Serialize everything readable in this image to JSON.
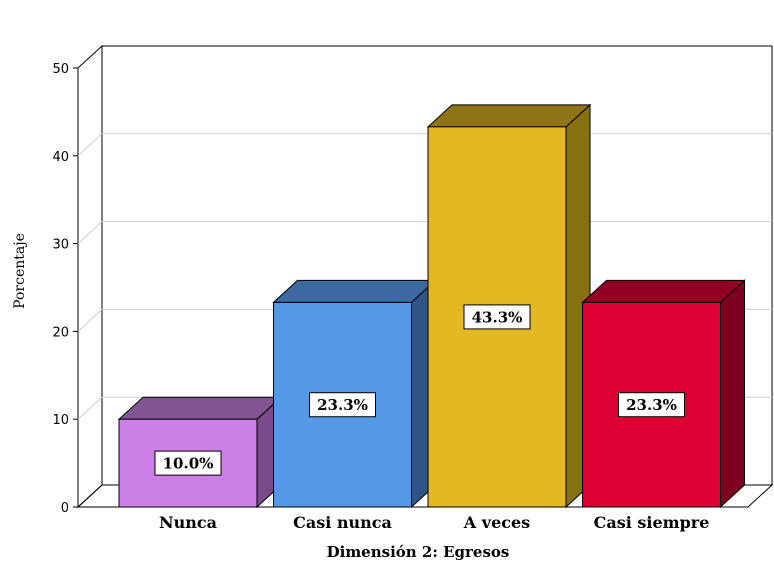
{
  "chart_data": {
    "type": "bar",
    "style": "3d",
    "xlabel": "Dimensión 2: Egresos",
    "ylabel": "Porcentaje",
    "ylim": [
      0,
      50
    ],
    "yticks": [
      "0",
      "10",
      "20",
      "30",
      "40",
      "50"
    ],
    "grid": true,
    "categories": [
      "Nunca",
      "Casi nunca",
      "A veces",
      "Casi siempre"
    ],
    "values": [
      10.0,
      23.3,
      43.3,
      23.3
    ],
    "data_labels": [
      "10.0%",
      "23.3%",
      "43.3%",
      "23.3%"
    ],
    "colors": {
      "front": [
        "#cc7fe6",
        "#5599e6",
        "#e3b822",
        "#dd0033"
      ],
      "top": [
        "#81558f",
        "#3b6aa1",
        "#8f7415",
        "#8f0024"
      ],
      "side": [
        "#7a4a8a",
        "#2f5586",
        "#86700f",
        "#7d0021"
      ]
    }
  }
}
